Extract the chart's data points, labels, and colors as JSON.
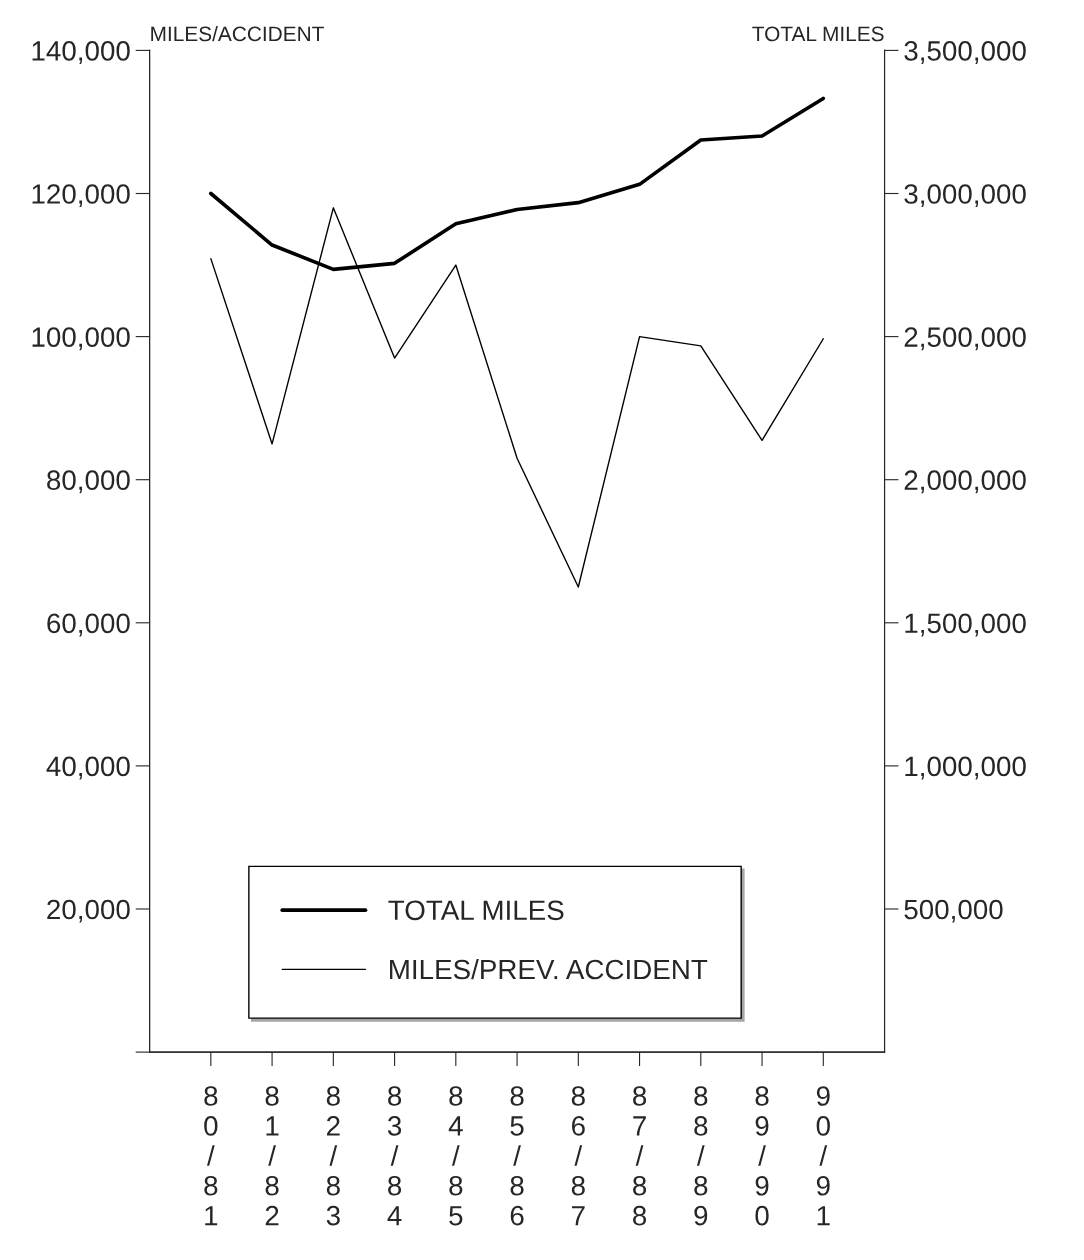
{
  "chart_data": {
    "type": "line",
    "ylabel": "MILES/ACCIDENT",
    "y2label": "TOTAL MILES",
    "categories": [
      "80/81",
      "81/82",
      "82/83",
      "83/84",
      "84/85",
      "85/86",
      "86/87",
      "87/88",
      "88/89",
      "89/90",
      "90/91"
    ],
    "series": [
      {
        "name": "TOTAL MILES",
        "color": "#000000",
        "axis": "y2",
        "values": [
          3000000,
          2820000,
          2735000,
          2756000,
          2894000,
          2944000,
          2968000,
          3032000,
          3187000,
          3201000,
          3332000
        ]
      },
      {
        "name": "MILES/PREV. ACCIDENT",
        "color": "#000000",
        "axis": "y",
        "values": [
          110900,
          85000,
          118000,
          97000,
          110000,
          83000,
          65000,
          100000,
          98700,
          85500,
          99700
        ]
      }
    ],
    "ylim": [
      0,
      140000
    ],
    "yticks": [
      {
        "value": 0,
        "label": null
      },
      {
        "value": 20000,
        "label": "20,000"
      },
      {
        "value": 40000,
        "label": "40,000"
      },
      {
        "value": 60000,
        "label": "60,000"
      },
      {
        "value": 80000,
        "label": "80,000"
      },
      {
        "value": 100000,
        "label": "100,000"
      },
      {
        "value": 120000,
        "label": "120,000"
      },
      {
        "value": 140000,
        "label": "140,000"
      }
    ],
    "y2lim": [
      0,
      3500000
    ],
    "y2ticks": [
      {
        "value": 500000,
        "label": "500,000"
      },
      {
        "value": 1000000,
        "label": "1,000,000"
      },
      {
        "value": 1500000,
        "label": "1,500,000"
      },
      {
        "value": 2000000,
        "label": "2,000,000"
      },
      {
        "value": 2500000,
        "label": "2,500,000"
      },
      {
        "value": 3000000,
        "label": "3,000,000"
      },
      {
        "value": 3500000,
        "label": "3,500,000"
      }
    ],
    "legend": "bottom",
    "grid": false,
    "marker": "none",
    "line_style": "solid"
  }
}
